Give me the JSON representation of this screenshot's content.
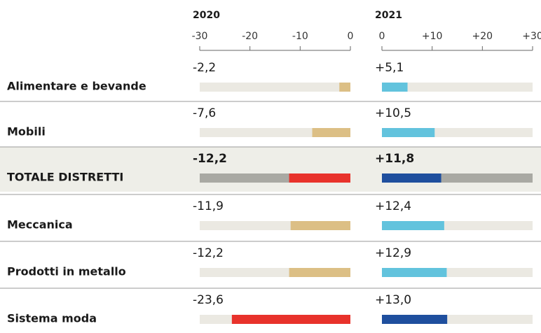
{
  "chart_data": {
    "type": "bar",
    "orientation": "horizontal",
    "categories": [
      "Alimentare e bevande",
      "Mobili",
      "TOTALE DISTRETTI",
      "Meccanica",
      "Prodotti in metallo",
      "Sistema moda"
    ],
    "highlight": "TOTALE DISTRETTI",
    "series": [
      {
        "name": "2020",
        "values": [
          -2.2,
          -7.6,
          -12.2,
          -11.9,
          -12.2,
          -23.6
        ],
        "value_labels": [
          "-2,2",
          "-7,6",
          "-12,2",
          "-11,9",
          "-12,2",
          "-23,6"
        ],
        "colors": [
          "#dcbf85",
          "#dcbf85",
          "#e8322b",
          "#dcbf85",
          "#dcbf85",
          "#e8322b"
        ],
        "xlim": [
          -30,
          0
        ],
        "xticks": [
          -30,
          -20,
          -10,
          0
        ]
      },
      {
        "name": "2021",
        "values": [
          5.1,
          10.5,
          11.8,
          12.4,
          12.9,
          13.0
        ],
        "value_labels": [
          "+5,1",
          "+10,5",
          "+11,8",
          "+12,4",
          "+12,9",
          "+13,0"
        ],
        "colors": [
          "#62c3dd",
          "#62c3dd",
          "#1f4f9e",
          "#62c3dd",
          "#62c3dd",
          "#1f4f9e"
        ],
        "xlim": [
          0,
          30
        ],
        "xticks": [
          0,
          {
            "value": 10,
            "label": "+10"
          },
          {
            "value": 20,
            "label": "+20"
          },
          {
            "value": 30,
            "label": "+30"
          }
        ]
      }
    ]
  }
}
